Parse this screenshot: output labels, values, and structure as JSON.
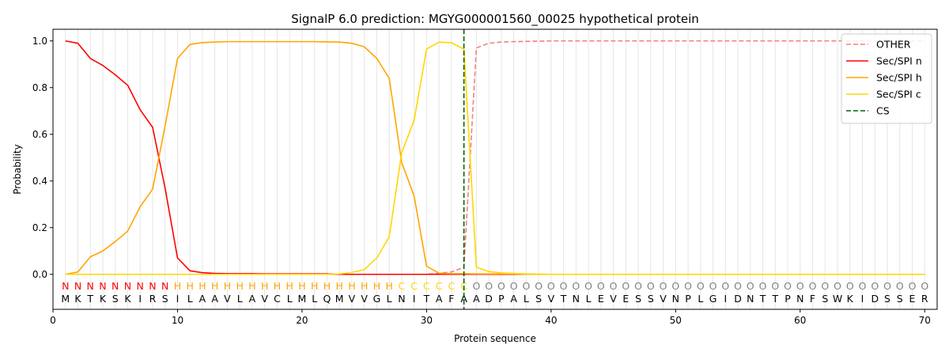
{
  "chart_data": {
    "type": "line",
    "title": "SignalP 6.0 prediction: MGYG000001560_00025 hypothetical protein",
    "xlabel": "Protein sequence",
    "ylabel": "Probability",
    "xlim": [
      0,
      71
    ],
    "ylim": [
      -0.15,
      1.05
    ],
    "xticks": [
      0,
      10,
      20,
      30,
      40,
      50,
      60,
      70
    ],
    "yticks": [
      0.0,
      0.2,
      0.4,
      0.6,
      0.8,
      1.0
    ],
    "grid": "vertical lines at each residue",
    "legend_position": "top-right",
    "sequence": [
      "M",
      "K",
      "T",
      "K",
      "S",
      "K",
      "I",
      "R",
      "S",
      "I",
      "L",
      "A",
      "A",
      "V",
      "L",
      "A",
      "V",
      "C",
      "L",
      "M",
      "L",
      "Q",
      "M",
      "V",
      "V",
      "G",
      "L",
      "N",
      "I",
      "T",
      "A",
      "F",
      "A",
      "A",
      "D",
      "P",
      "A",
      "L",
      "S",
      "V",
      "T",
      "N",
      "L",
      "E",
      "V",
      "E",
      "S",
      "S",
      "V",
      "N",
      "P",
      "L",
      "G",
      "I",
      "D",
      "N",
      "T",
      "T",
      "P",
      "N",
      "F",
      "S",
      "W",
      "K",
      "I",
      "D",
      "S",
      "S",
      "E",
      "R"
    ],
    "region_labels": [
      "N",
      "N",
      "N",
      "N",
      "N",
      "N",
      "N",
      "N",
      "N",
      "H",
      "H",
      "H",
      "H",
      "H",
      "H",
      "H",
      "H",
      "H",
      "H",
      "H",
      "H",
      "H",
      "H",
      "H",
      "H",
      "H",
      "H",
      "C",
      "C",
      "C",
      "C",
      "C",
      "C",
      "O",
      "O",
      "O",
      "O",
      "O",
      "O",
      "O",
      "O",
      "O",
      "O",
      "O",
      "O",
      "O",
      "O",
      "O",
      "O",
      "O",
      "O",
      "O",
      "O",
      "O",
      "O",
      "O",
      "O",
      "O",
      "O",
      "O",
      "O",
      "O",
      "O",
      "O",
      "O",
      "O",
      "O",
      "O",
      "O",
      "O"
    ],
    "region_colors": {
      "N": "#ff0000",
      "H": "#ffa500",
      "C": "#ffd700",
      "O": "#808080"
    },
    "cleavage_site": 33,
    "series": [
      {
        "name": "OTHER",
        "color": "#f08080",
        "style": "dashed",
        "values": [
          0,
          0,
          0,
          0,
          0,
          0,
          0,
          0,
          0,
          0,
          0,
          0,
          0,
          0,
          0,
          0,
          0,
          0,
          0,
          0,
          0,
          0,
          0,
          0,
          0,
          0,
          0,
          0,
          0,
          0,
          0.005,
          0.01,
          0.03,
          0.97,
          0.99,
          0.995,
          0.997,
          0.998,
          0.999,
          1,
          1,
          1,
          1,
          1,
          1,
          1,
          1,
          1,
          1,
          1,
          1,
          1,
          1,
          1,
          1,
          1,
          1,
          1,
          1,
          1,
          1,
          1,
          1,
          1,
          1,
          1,
          1,
          1,
          1,
          1
        ]
      },
      {
        "name": "Sec/SPI n",
        "color": "#ff0000",
        "style": "solid",
        "values": [
          1.0,
          0.99,
          0.925,
          0.895,
          0.855,
          0.81,
          0.705,
          0.63,
          0.37,
          0.07,
          0.015,
          0.007,
          0.004,
          0.003,
          0.003,
          0.003,
          0.002,
          0.002,
          0.002,
          0.002,
          0.002,
          0.002,
          0,
          0,
          0,
          0,
          0,
          0,
          0,
          0,
          0,
          0,
          0,
          0,
          0,
          0,
          0,
          0,
          0,
          0,
          0,
          0,
          0,
          0,
          0,
          0,
          0,
          0,
          0,
          0,
          0,
          0,
          0,
          0,
          0,
          0,
          0,
          0,
          0,
          0,
          0,
          0,
          0,
          0,
          0,
          0,
          0,
          0,
          0,
          0
        ]
      },
      {
        "name": "Sec/SPI h",
        "color": "#ffa500",
        "style": "solid",
        "values": [
          0,
          0.01,
          0.075,
          0.1,
          0.14,
          0.185,
          0.29,
          0.365,
          0.635,
          0.925,
          0.985,
          0.993,
          0.995,
          0.997,
          0.997,
          0.997,
          0.997,
          0.997,
          0.997,
          0.997,
          0.997,
          0.996,
          0.995,
          0.99,
          0.975,
          0.925,
          0.84,
          0.48,
          0.335,
          0.035,
          0.005,
          0.003,
          0.003,
          0.002,
          0.002,
          0.002,
          0.002,
          0,
          0,
          0,
          0,
          0,
          0,
          0,
          0,
          0,
          0,
          0,
          0,
          0,
          0,
          0,
          0,
          0,
          0,
          0,
          0,
          0,
          0,
          0,
          0,
          0,
          0,
          0,
          0,
          0,
          0,
          0,
          0,
          0
        ]
      },
      {
        "name": "Sec/SPI c",
        "color": "#ffd700",
        "style": "solid",
        "values": [
          0,
          0,
          0,
          0,
          0,
          0,
          0,
          0,
          0,
          0,
          0,
          0,
          0,
          0,
          0,
          0,
          0,
          0,
          0,
          0,
          0,
          0,
          0.002,
          0.008,
          0.02,
          0.07,
          0.16,
          0.52,
          0.66,
          0.965,
          0.995,
          0.992,
          0.965,
          0.03,
          0.012,
          0.006,
          0.004,
          0.002,
          0.001,
          0,
          0,
          0,
          0,
          0,
          0,
          0,
          0,
          0,
          0,
          0,
          0,
          0,
          0,
          0,
          0,
          0,
          0,
          0,
          0,
          0,
          0,
          0,
          0,
          0,
          0,
          0,
          0,
          0,
          0,
          0
        ]
      },
      {
        "name": "CS",
        "color": "#006400",
        "style": "dashed",
        "values": []
      }
    ]
  }
}
